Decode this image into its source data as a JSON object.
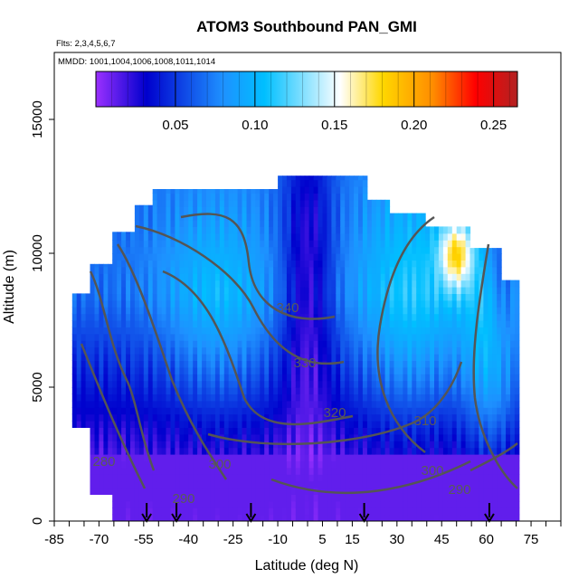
{
  "chart_data": {
    "type": "heatmap",
    "title": "ATOM3 Southbound PAN_GMI",
    "flights_text": "Flts: 2,3,4,5,6,7",
    "dates_text": "MMDD: 1001,1004,1006,1008,1011,1014",
    "xlabel": "Latitude (deg N)",
    "ylabel": "Altitude (m)",
    "xlim": [
      -85,
      85
    ],
    "ylim": [
      0,
      17500
    ],
    "x_tick_labels": [
      "-85",
      "-70",
      "-55",
      "-40",
      "-25",
      "-10",
      "5",
      "15",
      "30",
      "45",
      "60",
      "75"
    ],
    "y_tick_labels": [
      "0",
      "5000",
      "10000",
      "15000"
    ],
    "colorbar": {
      "range": [
        0,
        0.265
      ],
      "tick_labels": [
        "0.05",
        "0.10",
        "0.15",
        "0.20",
        "0.25"
      ],
      "colors": [
        "#9b30ff",
        "#0000cd",
        "#1e90ff",
        "#00bfff",
        "#ffffff",
        "#ffd700",
        "#ff8c00",
        "#ff0000",
        "#b22222"
      ]
    },
    "contour_labels": [
      "340",
      "330",
      "320",
      "310",
      "300",
      "290",
      "280",
      "300",
      "290"
    ],
    "flight_arrows_lat": [
      -54,
      -44,
      -19,
      19,
      61
    ],
    "grid": false,
    "legend": "top"
  }
}
